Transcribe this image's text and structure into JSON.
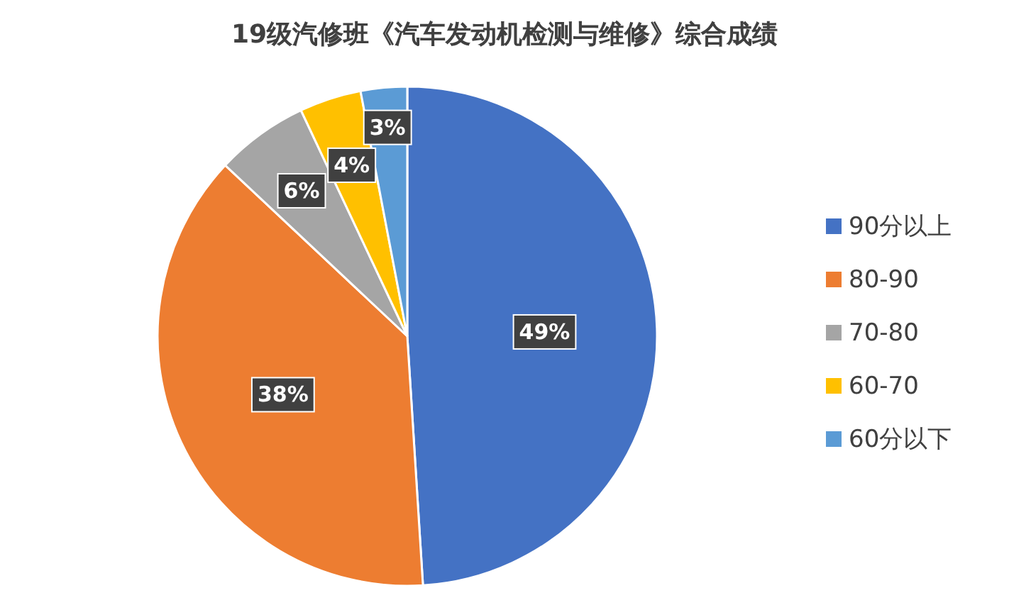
{
  "chart_data": {
    "type": "pie",
    "title": "19级汽修班《汽车发动机检测与维修》综合成绩",
    "categories": [
      "90分以上",
      "80-90",
      "70-80",
      "60-70",
      "60分以下"
    ],
    "values": [
      49,
      38,
      6,
      4,
      3
    ],
    "colors": [
      "#4472c4",
      "#ed7d31",
      "#a5a5a5",
      "#ffc000",
      "#5b9bd5"
    ],
    "value_labels": [
      "49%",
      "38%",
      "6%",
      "4%",
      "3%"
    ],
    "legend": "right"
  }
}
